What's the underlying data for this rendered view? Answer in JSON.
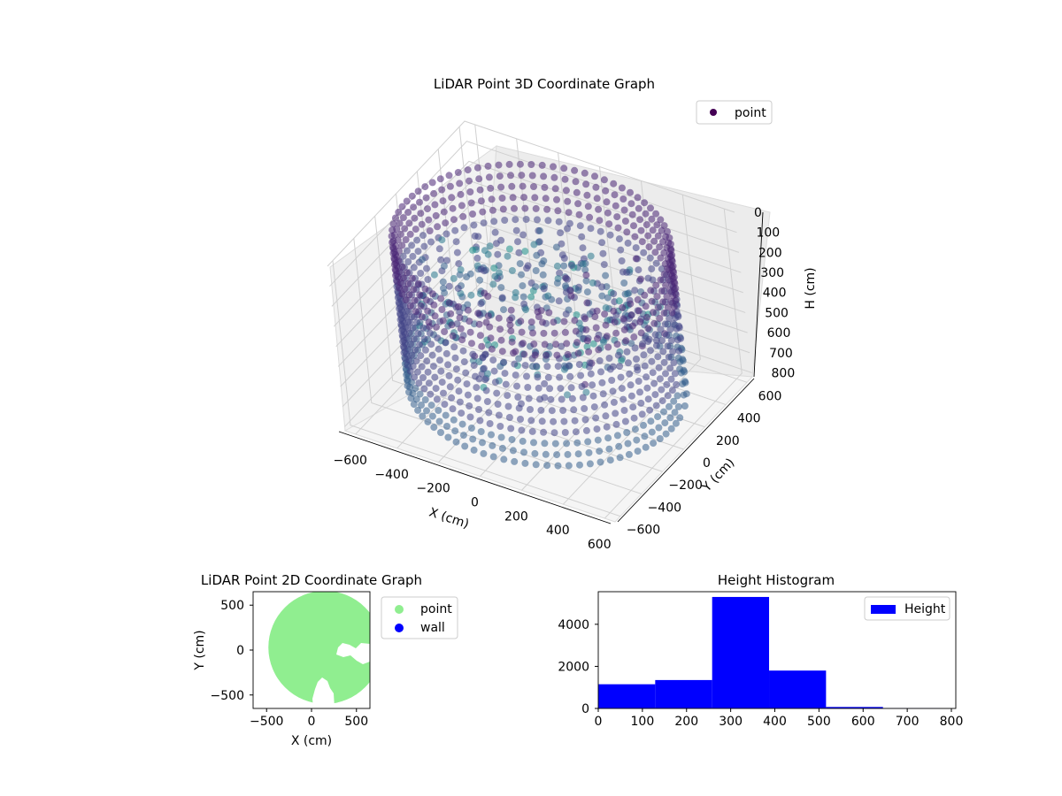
{
  "chart_data": [
    {
      "id": "3d",
      "type": "scatter",
      "title": "LiDAR Point 3D Coordinate Graph",
      "xlabel": "X (cm)",
      "ylabel": "Y (cm)",
      "zlabel": "H (cm)",
      "x_ticks": [
        "−600",
        "−400",
        "−200",
        "0",
        "200",
        "400",
        "600"
      ],
      "y_ticks": [
        "−600",
        "−400",
        "−200",
        "0",
        "200",
        "400",
        "600"
      ],
      "z_ticks": [
        "0",
        "100",
        "200",
        "300",
        "400",
        "500",
        "600",
        "700",
        "800"
      ],
      "xlim": [
        -650,
        650
      ],
      "ylim": [
        -650,
        650
      ],
      "zlim": [
        0,
        820
      ],
      "z_inverted": true,
      "grid": true,
      "legend": {
        "placement": "top-right",
        "entries": [
          {
            "label": "point",
            "color": "#440154"
          }
        ]
      },
      "series": [
        {
          "name": "point",
          "colormap": "viridis"
        }
      ],
      "cloud": {
        "wall_radius": 600,
        "wall_top": 20,
        "wall_bottom": 770
      }
    },
    {
      "id": "2d",
      "type": "scatter",
      "title": "LiDAR Point 2D Coordinate Graph",
      "xlabel": "X (cm)",
      "ylabel": "Y (cm)",
      "x_ticks": [
        "−500",
        "0",
        "500"
      ],
      "y_ticks": [
        "500",
        "0",
        "−500"
      ],
      "xlim": [
        -650,
        650
      ],
      "ylim": [
        -650,
        650
      ],
      "grid": false,
      "legend": {
        "placement": "outside-right",
        "entries": [
          {
            "label": "point",
            "color": "#90ee90"
          },
          {
            "label": "wall",
            "color": "#0000ff"
          }
        ]
      },
      "series": [
        {
          "name": "point",
          "color": "#90ee90",
          "radius": 600
        },
        {
          "name": "wall",
          "color": "#0000ff"
        }
      ]
    },
    {
      "id": "hist",
      "type": "bar",
      "title": "Height Histogram",
      "x_ticks": [
        "0",
        "100",
        "200",
        "300",
        "400",
        "500",
        "600",
        "700",
        "800"
      ],
      "y_ticks": [
        "0",
        "2000",
        "4000"
      ],
      "xlim": [
        0,
        810
      ],
      "ylim": [
        0,
        5550
      ],
      "grid": false,
      "legend": {
        "placement": "top-right",
        "entries": [
          {
            "label": "Height",
            "color": "#0000ff"
          }
        ]
      },
      "bin_edges": [
        0,
        129,
        258,
        387,
        516,
        645,
        774
      ],
      "series": [
        {
          "name": "Height",
          "color": "#0000ff",
          "values": [
            1150,
            1350,
            5300,
            1800,
            70,
            10
          ]
        }
      ]
    }
  ]
}
